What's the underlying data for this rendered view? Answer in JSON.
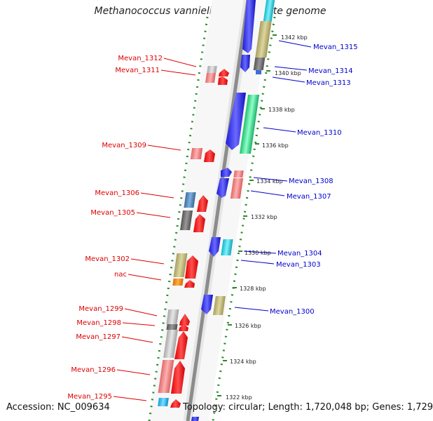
{
  "title": "Methanococcus vannielii SB, complete genome",
  "accession_text": "Accession: NC_009634",
  "topology_text": "Topology: circular; Length: 1,720,048 bp; Genes: 1,729",
  "colors": {
    "left_label": "#dd0000",
    "right_label": "#0000cc",
    "backbone": "#999999",
    "dotted_ring": "#2a8a2a",
    "tick_text": "#222222"
  },
  "ruler_ticks": [
    {
      "label": "1342 kbp"
    },
    {
      "label": "1340 kbp"
    },
    {
      "label": "1338 kbp"
    },
    {
      "label": "1336 kbp"
    },
    {
      "label": "1334 kbp"
    },
    {
      "label": "1332 kbp"
    },
    {
      "label": "1330 kbp"
    },
    {
      "label": "1328 kbp"
    },
    {
      "label": "1326 kbp"
    },
    {
      "label": "1324 kbp"
    },
    {
      "label": "1322 kbp"
    }
  ],
  "left_genes": [
    {
      "label": "Mevan_1312"
    },
    {
      "label": "Mevan_1311"
    },
    {
      "label": "Mevan_1309"
    },
    {
      "label": "Mevan_1306"
    },
    {
      "label": "Mevan_1305"
    },
    {
      "label": "Mevan_1302"
    },
    {
      "label": "nac"
    },
    {
      "label": "Mevan_1299"
    },
    {
      "label": "Mevan_1298"
    },
    {
      "label": "Mevan_1297"
    },
    {
      "label": "Mevan_1296"
    },
    {
      "label": "Mevan_1295"
    }
  ],
  "right_genes": [
    {
      "label": "Mevan_1315"
    },
    {
      "label": "Mevan_1314"
    },
    {
      "label": "Mevan_1313"
    },
    {
      "label": "Mevan_1310"
    },
    {
      "label": "Mevan_1308"
    },
    {
      "label": "Mevan_1307"
    },
    {
      "label": "Mevan_1304"
    },
    {
      "label": "Mevan_1303"
    },
    {
      "label": "Mevan_1300"
    }
  ]
}
